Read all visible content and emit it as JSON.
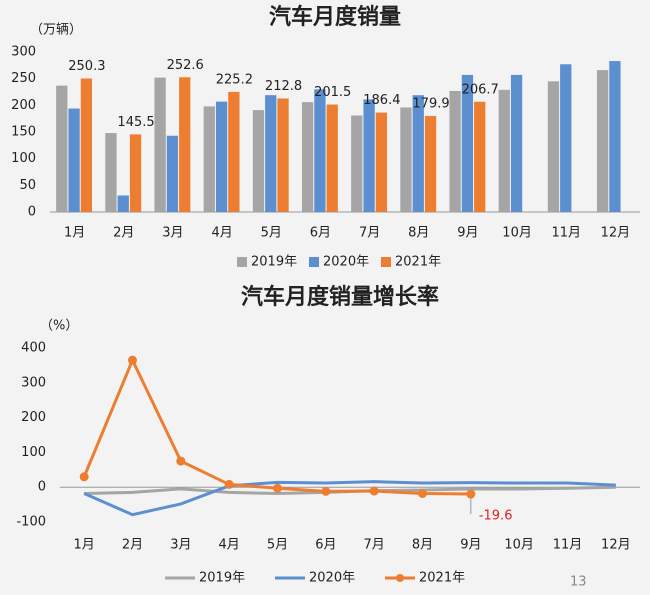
{
  "chart_data": [
    {
      "type": "bar",
      "title": "汽车月度销量",
      "y_label": "（万辆）",
      "categories": [
        "1月",
        "2月",
        "3月",
        "4月",
        "5月",
        "6月",
        "7月",
        "8月",
        "9月",
        "10月",
        "11月",
        "12月"
      ],
      "ylim": [
        0,
        300
      ],
      "yticks": [
        0,
        50,
        100,
        150,
        200,
        250,
        300
      ],
      "legend": "bottom",
      "series": [
        {
          "name": "2019年",
          "color": "#a5a5a5",
          "values": [
            237,
            148,
            252,
            198,
            191,
            206,
            181,
            196,
            227,
            229,
            245,
            266
          ]
        },
        {
          "name": "2020年",
          "color": "#5b8fd0",
          "values": [
            194,
            31,
            143,
            207,
            219,
            230,
            211,
            219,
            257,
            257,
            277,
            283
          ]
        },
        {
          "name": "2021年",
          "color": "#ed7d31",
          "values": [
            250.3,
            145.5,
            252.6,
            225.2,
            212.8,
            201.5,
            186.4,
            179.9,
            206.7,
            null,
            null,
            null
          ],
          "show_labels": true
        }
      ]
    },
    {
      "type": "line",
      "title": "汽车月度销量增长率",
      "y_label": "（%）",
      "categories": [
        "1月",
        "2月",
        "3月",
        "4月",
        "5月",
        "6月",
        "7月",
        "8月",
        "9月",
        "10月",
        "11月",
        "12月"
      ],
      "ylim": [
        -100,
        400
      ],
      "yticks": [
        -100,
        0,
        100,
        200,
        300,
        400
      ],
      "legend": "bottom",
      "annotation": "-19.6",
      "annotation_color": "#e02020",
      "series": [
        {
          "name": "2019年",
          "color": "#a5a5a5",
          "values": [
            -18,
            -15,
            -5,
            -15,
            -18,
            -15,
            -10,
            -8,
            -5,
            -5,
            -3,
            0
          ]
        },
        {
          "name": "2020年",
          "color": "#5b8fd0",
          "values": [
            -18,
            -79,
            -48,
            4,
            14,
            12,
            16,
            12,
            13,
            12,
            12,
            6
          ]
        },
        {
          "name": "2021年",
          "color": "#ed7d31",
          "markers": true,
          "values": [
            30,
            365,
            75,
            8,
            -3,
            -12,
            -11,
            -18,
            -19.6,
            null,
            null,
            null
          ]
        }
      ]
    }
  ],
  "page_number": "13"
}
